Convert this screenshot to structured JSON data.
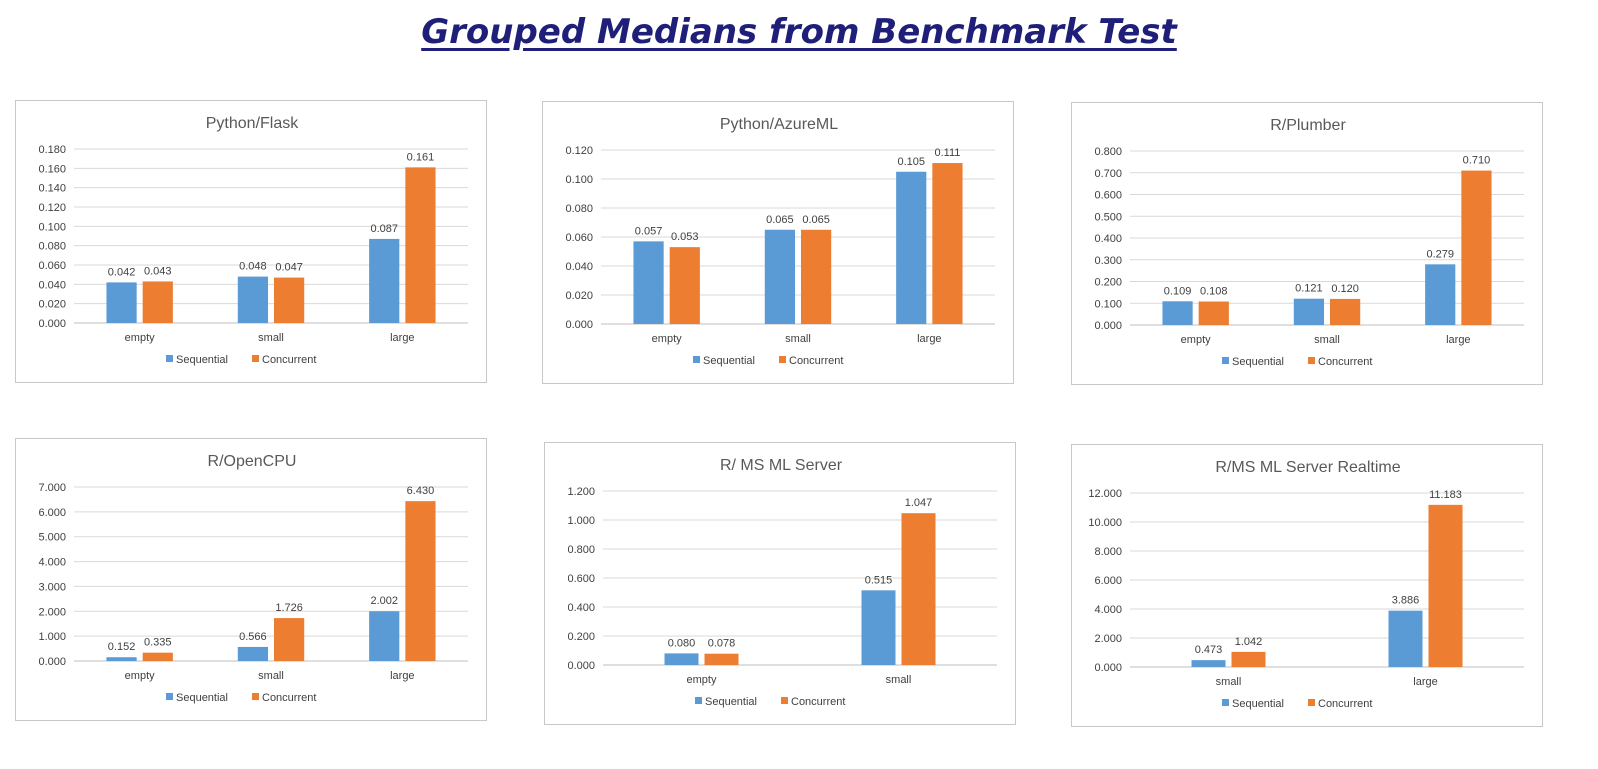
{
  "page_title": "Grouped Medians from Benchmark Test",
  "colors": {
    "sequential": "#5b9bd5",
    "concurrent": "#ed7d31",
    "title": "#1f1f7a"
  },
  "chart_data": [
    {
      "type": "bar",
      "title": "Python/Flask",
      "categories": [
        "empty",
        "small",
        "large"
      ],
      "series": [
        {
          "name": "Sequential",
          "values": [
            0.042,
            0.048,
            0.087
          ]
        },
        {
          "name": "Concurrent",
          "values": [
            0.043,
            0.047,
            0.161
          ]
        }
      ],
      "data_labels": [
        [
          "0.042",
          "0.048",
          "0.087"
        ],
        [
          "0.043",
          "0.047",
          "0.161"
        ]
      ],
      "ylim": [
        0,
        0.18
      ],
      "yticks": [
        "0.000",
        "0.020",
        "0.040",
        "0.060",
        "0.080",
        "0.100",
        "0.120",
        "0.140",
        "0.160",
        "0.180"
      ],
      "grid": true,
      "legend": "bottom"
    },
    {
      "type": "bar",
      "title": "Python/AzureML",
      "categories": [
        "empty",
        "small",
        "large"
      ],
      "series": [
        {
          "name": "Sequential",
          "values": [
            0.057,
            0.065,
            0.105
          ]
        },
        {
          "name": "Concurrent",
          "values": [
            0.053,
            0.065,
            0.111
          ]
        }
      ],
      "data_labels": [
        [
          "0.057",
          "0.065",
          "0.105"
        ],
        [
          "0.053",
          "0.065",
          "0.111"
        ]
      ],
      "ylim": [
        0,
        0.12
      ],
      "yticks": [
        "0.000",
        "0.020",
        "0.040",
        "0.060",
        "0.080",
        "0.100",
        "0.120"
      ],
      "grid": true,
      "legend": "bottom"
    },
    {
      "type": "bar",
      "title": "R/Plumber",
      "categories": [
        "empty",
        "small",
        "large"
      ],
      "series": [
        {
          "name": "Sequential",
          "values": [
            0.109,
            0.121,
            0.279
          ]
        },
        {
          "name": "Concurrent",
          "values": [
            0.108,
            0.12,
            0.71
          ]
        }
      ],
      "data_labels": [
        [
          "0.109",
          "0.121",
          "0.279"
        ],
        [
          "0.108",
          "0.120",
          "0.710"
        ]
      ],
      "ylim": [
        0,
        0.8
      ],
      "yticks": [
        "0.000",
        "0.100",
        "0.200",
        "0.300",
        "0.400",
        "0.500",
        "0.600",
        "0.700",
        "0.800"
      ],
      "grid": true,
      "legend": "bottom"
    },
    {
      "type": "bar",
      "title": "R/OpenCPU",
      "categories": [
        "empty",
        "small",
        "large"
      ],
      "series": [
        {
          "name": "Sequential",
          "values": [
            0.152,
            0.566,
            2.002
          ]
        },
        {
          "name": "Concurrent",
          "values": [
            0.335,
            1.726,
            6.43
          ]
        }
      ],
      "data_labels": [
        [
          "0.152",
          "0.566",
          "2.002"
        ],
        [
          "0.335",
          "1.726",
          "6.430"
        ]
      ],
      "ylim": [
        0,
        7
      ],
      "yticks": [
        "0.000",
        "1.000",
        "2.000",
        "3.000",
        "4.000",
        "5.000",
        "6.000",
        "7.000"
      ],
      "grid": true,
      "legend": "bottom"
    },
    {
      "type": "bar",
      "title": "R/ MS ML Server",
      "categories": [
        "empty",
        "small"
      ],
      "series": [
        {
          "name": "Sequential",
          "values": [
            0.08,
            0.515
          ]
        },
        {
          "name": "Concurrent",
          "values": [
            0.078,
            1.047
          ]
        }
      ],
      "data_labels": [
        [
          "0.080",
          "0.515"
        ],
        [
          "0.078",
          "1.047"
        ]
      ],
      "ylim": [
        0,
        1.2
      ],
      "yticks": [
        "0.000",
        "0.200",
        "0.400",
        "0.600",
        "0.800",
        "1.000",
        "1.200"
      ],
      "grid": true,
      "legend": "bottom"
    },
    {
      "type": "bar",
      "title": "R/MS ML Server Realtime",
      "categories": [
        "small",
        "large"
      ],
      "series": [
        {
          "name": "Sequential",
          "values": [
            0.473,
            3.886
          ]
        },
        {
          "name": "Concurrent",
          "values": [
            1.042,
            11.183
          ]
        }
      ],
      "data_labels": [
        [
          "0.473",
          "3.886"
        ],
        [
          "1.042",
          "11.183"
        ]
      ],
      "ylim": [
        0,
        12
      ],
      "yticks": [
        "0.000",
        "2.000",
        "4.000",
        "6.000",
        "8.000",
        "10.000",
        "12.000"
      ],
      "grid": true,
      "legend": "bottom"
    }
  ]
}
